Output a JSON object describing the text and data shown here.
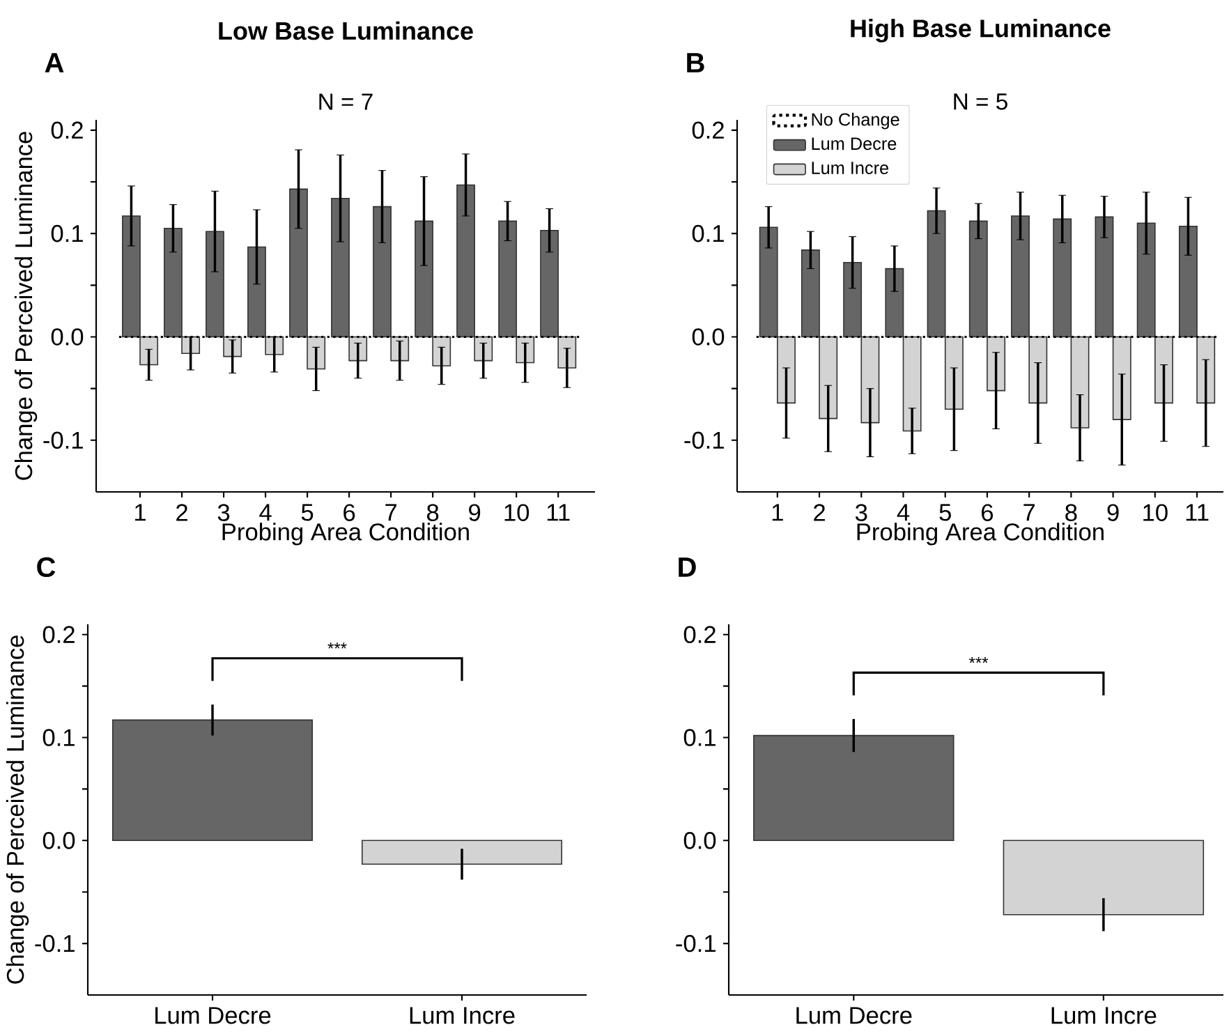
{
  "chart_data": [
    {
      "type": "bar",
      "title": "Low Base Luminance",
      "subtitle": "N = 7",
      "xlabel": "Probing Area Condition",
      "ylabel": "Change of Perceived Luminance",
      "annotations": [
        "A"
      ],
      "categories": [
        "1",
        "2",
        "3",
        "4",
        "5",
        "6",
        "7",
        "8",
        "9",
        "10",
        "11"
      ],
      "series": [
        {
          "color": "#666666",
          "values": [
            0.117,
            0.105,
            0.102,
            0.087,
            0.143,
            0.134,
            0.126,
            0.112,
            0.147,
            0.112,
            0.103
          ],
          "errors": [
            0.029,
            0.023,
            0.039,
            0.036,
            0.038,
            0.042,
            0.035,
            0.043,
            0.03,
            0.019,
            0.021
          ]
        },
        {
          "color": "#d3d3d3",
          "values": [
            -0.027,
            -0.016,
            -0.019,
            -0.017,
            -0.031,
            -0.023,
            -0.023,
            -0.028,
            -0.023,
            -0.025,
            -0.03
          ],
          "errors": [
            0.015,
            0.016,
            0.016,
            0.017,
            0.021,
            0.017,
            0.019,
            0.018,
            0.017,
            0.019,
            0.019
          ]
        }
      ],
      "ylim": [
        -0.15,
        0.21
      ],
      "yticks": [
        {
          "value": -0.1,
          "label": "-0.1"
        },
        {
          "value": -0.05,
          "label": null
        },
        {
          "value": 0,
          "label": "0.0"
        },
        {
          "value": 0.05,
          "label": null
        },
        {
          "value": 0.1,
          "label": "0.1"
        },
        {
          "value": 0.15,
          "label": null
        },
        {
          "value": 0.2,
          "label": "0.2"
        }
      ],
      "ref_lines": [
        {
          "axis": "y",
          "value": 0,
          "line_style": "dotted",
          "color": "#000000"
        }
      ]
    },
    {
      "type": "bar",
      "title": "High Base Luminance",
      "subtitle": "N = 5",
      "xlabel": "Probing Area Condition",
      "annotations": [
        "B"
      ],
      "categories": [
        "1",
        "2",
        "3",
        "4",
        "5",
        "6",
        "7",
        "8",
        "9",
        "10",
        "11"
      ],
      "series": [
        {
          "name": "Lum Decre",
          "color": "#666666",
          "values": [
            0.106,
            0.084,
            0.072,
            0.066,
            0.122,
            0.112,
            0.117,
            0.114,
            0.116,
            0.11,
            0.107
          ],
          "errors": [
            0.02,
            0.018,
            0.025,
            0.022,
            0.022,
            0.017,
            0.023,
            0.023,
            0.02,
            0.03,
            0.028
          ]
        },
        {
          "name": "Lum Incre",
          "color": "#d3d3d3",
          "values": [
            -0.064,
            -0.079,
            -0.083,
            -0.091,
            -0.07,
            -0.052,
            -0.064,
            -0.088,
            -0.08,
            -0.064,
            -0.064
          ],
          "errors": [
            0.034,
            0.032,
            0.033,
            0.022,
            0.04,
            0.037,
            0.039,
            0.032,
            0.044,
            0.037,
            0.042
          ]
        }
      ],
      "ylim": [
        -0.15,
        0.21
      ],
      "yticks": [
        {
          "value": -0.1,
          "label": "-0.1"
        },
        {
          "value": -0.05,
          "label": null
        },
        {
          "value": 0,
          "label": "0.0"
        },
        {
          "value": 0.05,
          "label": null
        },
        {
          "value": 0.1,
          "label": "0.1"
        },
        {
          "value": 0.15,
          "label": null
        },
        {
          "value": 0.2,
          "label": "0.2"
        }
      ],
      "ref_lines": [
        {
          "axis": "y",
          "value": 0,
          "label": "No Change",
          "line_style": "dotted",
          "color": "#000000"
        }
      ],
      "legend": "top left"
    },
    {
      "type": "bar",
      "ylabel": "Change of Perceived Luminance",
      "annotations": [
        "C",
        "***"
      ],
      "categories": [
        "Lum Decre",
        "Lum Incre"
      ],
      "values": [
        0.117,
        -0.023
      ],
      "colors": [
        "#666666",
        "#d3d3d3"
      ],
      "errors": [
        0.015,
        0.015
      ],
      "ylim": [
        -0.15,
        0.21
      ],
      "yticks": [
        {
          "value": -0.1,
          "label": "-0.1"
        },
        {
          "value": -0.05,
          "label": null
        },
        {
          "value": 0,
          "label": "0.0"
        },
        {
          "value": 0.05,
          "label": null
        },
        {
          "value": 0.1,
          "label": "0.1"
        },
        {
          "value": 0.15,
          "label": null
        },
        {
          "value": 0.2,
          "label": "0.2"
        }
      ]
    },
    {
      "type": "bar",
      "annotations": [
        "D",
        "***"
      ],
      "categories": [
        "Lum Decre",
        "Lum Incre"
      ],
      "values": [
        0.102,
        -0.072
      ],
      "colors": [
        "#666666",
        "#d3d3d3"
      ],
      "errors": [
        0.016,
        0.016
      ],
      "ylim": [
        -0.15,
        0.21
      ],
      "yticks": [
        {
          "value": -0.1,
          "label": "-0.1"
        },
        {
          "value": -0.05,
          "label": null
        },
        {
          "value": 0,
          "label": "0.0"
        },
        {
          "value": 0.05,
          "label": null
        },
        {
          "value": 0.1,
          "label": "0.1"
        },
        {
          "value": 0.15,
          "label": null
        },
        {
          "value": 0.2,
          "label": "0.2"
        }
      ]
    }
  ]
}
